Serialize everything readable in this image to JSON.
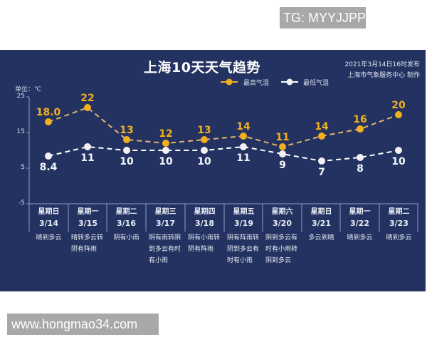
{
  "watermarks": {
    "top_right": "TG: MYYJJPP",
    "bottom_left": "www.hongmao34.com"
  },
  "header": {
    "title": "上海10天天气趋势",
    "published": "2021年3月14日16时发布",
    "producer": "上海市气象服务中心 制作"
  },
  "legend": {
    "high_label": "最高气温",
    "low_label": "最低气温"
  },
  "axis": {
    "unit": "单位：℃",
    "ticks": [
      "25",
      "15",
      "5",
      "-5"
    ]
  },
  "colors": {
    "background": "#233260",
    "high": "#f2b01e",
    "high_line": "#e2b56a",
    "low": "#ffffff",
    "axis": "#8f9cc4"
  },
  "days": [
    {
      "weekday": "星期日",
      "date": "3/14",
      "weather": "晴到多云",
      "high": "18.0",
      "low": "8.4"
    },
    {
      "weekday": "星期一",
      "date": "3/15",
      "weather": "晴转多云转\n阴有阵雨",
      "high": "22",
      "low": "11"
    },
    {
      "weekday": "星期二",
      "date": "3/16",
      "weather": "阴有小雨",
      "high": "13",
      "low": "10"
    },
    {
      "weekday": "星期三",
      "date": "3/17",
      "weather": "阴有雨转阴\n到多云有时\n有小雨",
      "high": "12",
      "low": "10"
    },
    {
      "weekday": "星期四",
      "date": "3/18",
      "weather": "阴有小雨转\n阴有阵雨",
      "high": "13",
      "low": "10"
    },
    {
      "weekday": "星期五",
      "date": "3/19",
      "weather": "阴有阵雨转\n阴到多云有\n时有小雨",
      "high": "14",
      "low": "11"
    },
    {
      "weekday": "星期六",
      "date": "3/20",
      "weather": "阴到多云有\n时有小雨转\n阴到多云",
      "high": "11",
      "low": "9"
    },
    {
      "weekday": "星期日",
      "date": "3/21",
      "weather": "多云到晴",
      "high": "14",
      "low": "7"
    },
    {
      "weekday": "星期一",
      "date": "3/22",
      "weather": "晴到多云",
      "high": "16",
      "low": "8"
    },
    {
      "weekday": "星期二",
      "date": "3/23",
      "weather": "晴到多云",
      "high": "20",
      "low": "10"
    }
  ],
  "chart_data": {
    "type": "line",
    "title": "上海10天天气趋势",
    "subtitle": "2021年3月14日16时发布 上海市气象服务中心 制作",
    "xlabel": "",
    "ylabel": "单位：℃",
    "categories": [
      "星期日 3/14",
      "星期一 3/15",
      "星期二 3/16",
      "星期三 3/17",
      "星期四 3/18",
      "星期五 3/19",
      "星期六 3/20",
      "星期日 3/21",
      "星期一 3/22",
      "星期二 3/23"
    ],
    "series": [
      {
        "name": "最高气温",
        "values": [
          18.0,
          22,
          13,
          12,
          13,
          14,
          11,
          14,
          16,
          20
        ],
        "color": "#f2b01e",
        "style": "dashed"
      },
      {
        "name": "最低气温",
        "values": [
          8.4,
          11,
          10,
          10,
          10,
          11,
          9,
          7,
          8,
          10
        ],
        "color": "#ffffff",
        "style": "dashed"
      }
    ],
    "ylim": [
      -5,
      25
    ],
    "yticks": [
      25,
      15,
      5,
      -5
    ],
    "grid": false,
    "legend_position": "top"
  }
}
